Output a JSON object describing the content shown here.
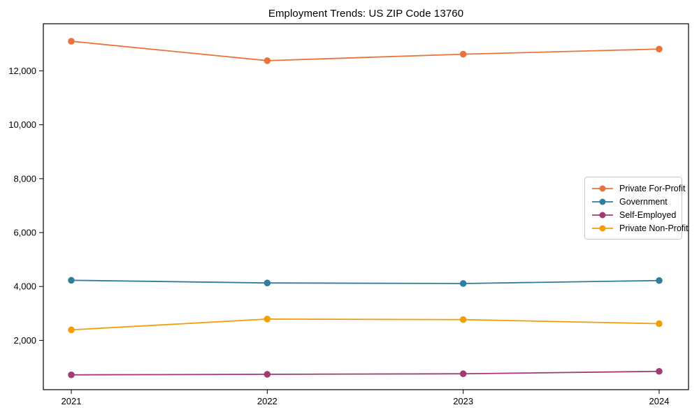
{
  "chart_data": {
    "type": "line",
    "title": "Employment Trends: US ZIP Code 13760",
    "x": [
      "2021",
      "2022",
      "2023",
      "2024"
    ],
    "series": [
      {
        "name": "Private For-Profit",
        "color": "#E8743B",
        "values": [
          13100,
          12380,
          12620,
          12810
        ]
      },
      {
        "name": "Government",
        "color": "#2E7F9E",
        "values": [
          4230,
          4130,
          4110,
          4220
        ]
      },
      {
        "name": "Self-Employed",
        "color": "#A23B72",
        "values": [
          720,
          740,
          760,
          850
        ]
      },
      {
        "name": "Private Non-Profit",
        "color": "#F29F05",
        "values": [
          2390,
          2790,
          2770,
          2620
        ]
      }
    ],
    "xlabel": "",
    "ylabel": "",
    "ylim": [
      170,
      13750
    ],
    "yticks": {
      "values": [
        2000,
        4000,
        6000,
        8000,
        10000,
        12000
      ],
      "labels": [
        "2,000",
        "4,000",
        "6,000",
        "8,000",
        "10,000",
        "12,000"
      ]
    },
    "grid": false,
    "marker": "circle",
    "legend_position": "center-right",
    "axis_color": "#000000"
  }
}
